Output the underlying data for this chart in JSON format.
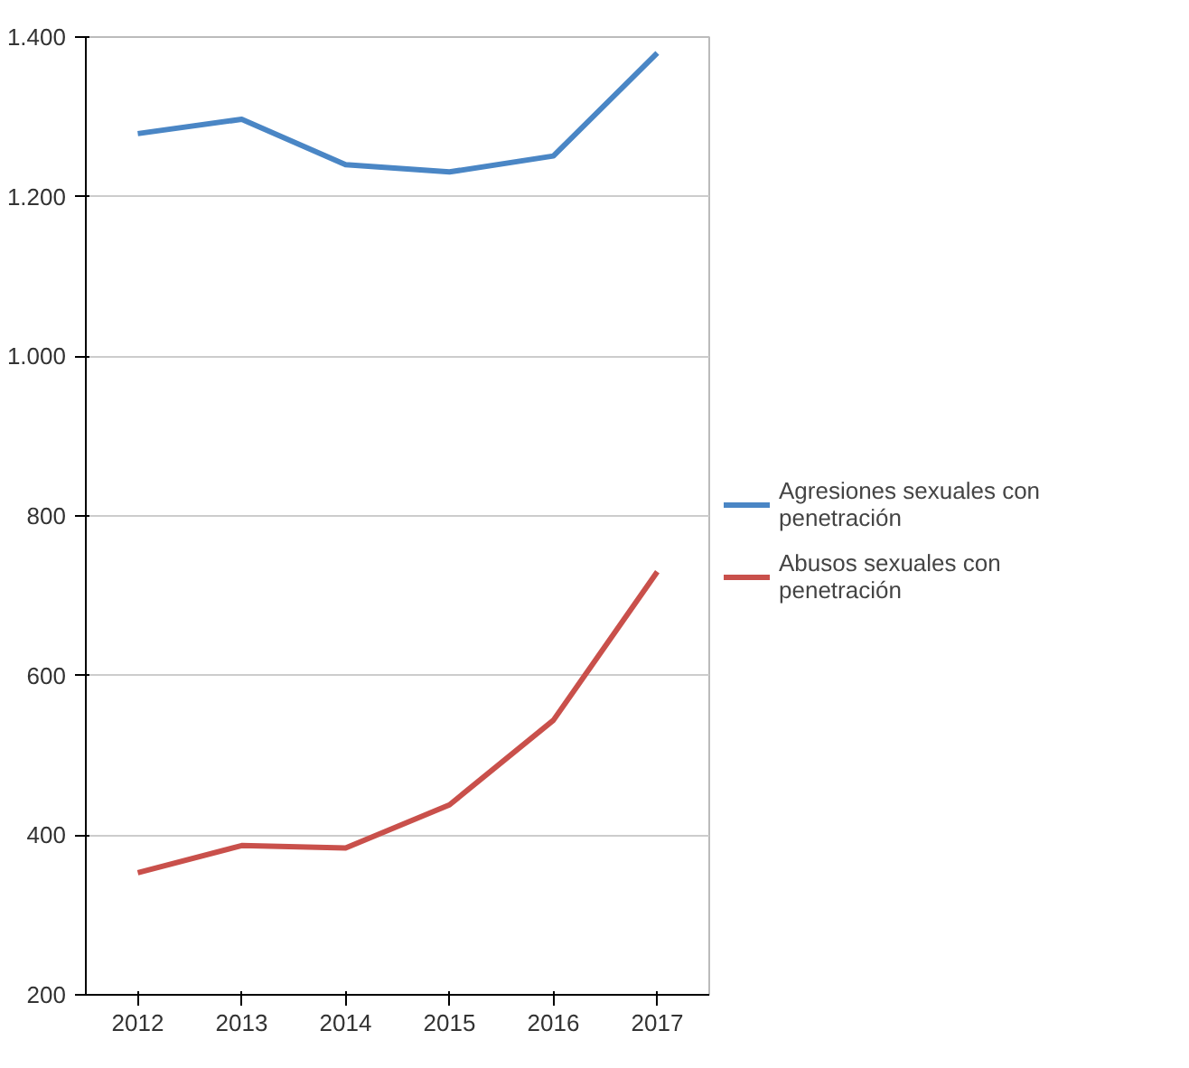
{
  "chart_data": {
    "type": "line",
    "categories": [
      "2012",
      "2013",
      "2014",
      "2015",
      "2016",
      "2017"
    ],
    "series": [
      {
        "name": "Agresiones sexuales con penetración",
        "color": "#4a86c5",
        "values": [
          1279,
          1297,
          1240,
          1231,
          1251,
          1380
        ]
      },
      {
        "name": "Abusos sexuales con penetración",
        "color": "#c9504b",
        "values": [
          353,
          387,
          384,
          438,
          544,
          730
        ]
      }
    ],
    "ylim": [
      200,
      1400
    ],
    "yticks": [
      {
        "value": 200,
        "label": "200"
      },
      {
        "value": 400,
        "label": "400"
      },
      {
        "value": 600,
        "label": "600"
      },
      {
        "value": 800,
        "label": "800"
      },
      {
        "value": 1000,
        "label": "1.000"
      },
      {
        "value": 1200,
        "label": "1.200"
      },
      {
        "value": 1400,
        "label": "1.400"
      }
    ],
    "grid": "y",
    "legend": "right",
    "marker": "none",
    "line_style": "solid"
  }
}
